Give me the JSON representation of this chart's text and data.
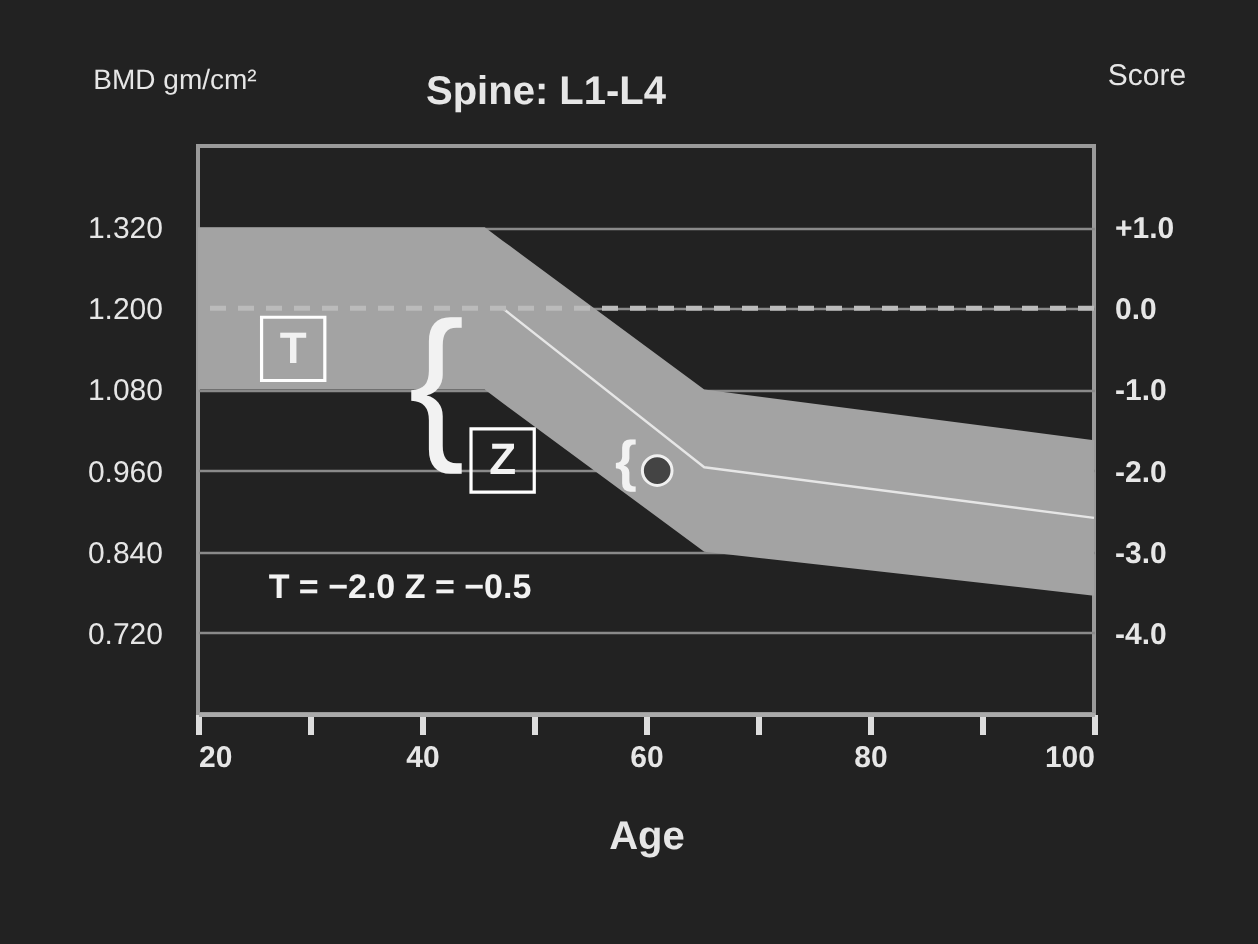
{
  "chart_data": {
    "type": "area",
    "title": "Spine: L1-L4",
    "xlabel": "Age",
    "ylabel": "BMD gm/cm²",
    "y2label": "Score",
    "xlim": [
      20,
      100
    ],
    "xticks": [
      20,
      {
        "value": 30,
        "label": null
      },
      40,
      {
        "value": 50,
        "label": null
      },
      60,
      {
        "value": 70,
        "label": null
      },
      80,
      {
        "value": 90,
        "label": null
      },
      100
    ],
    "ylim": [
      0.6,
      1.44
    ],
    "yticks": [
      {
        "value": 0.72,
        "label": "0.720"
      },
      {
        "value": 0.84,
        "label": "0.840"
      },
      {
        "value": 0.96,
        "label": "0.960"
      },
      {
        "value": 1.08,
        "label": "1.080"
      },
      {
        "value": 1.2,
        "label": "1.200"
      },
      {
        "value": 1.32,
        "label": "1.320"
      }
    ],
    "y2lim": [
      -5,
      2
    ],
    "y2ticks": [
      {
        "value": -4,
        "label": "-4.0"
      },
      {
        "value": -3,
        "label": "-3.0"
      },
      {
        "value": -2,
        "label": "-2.0"
      },
      {
        "value": -1,
        "label": "-1.0"
      },
      {
        "value": 0,
        "label": "0.0"
      },
      {
        "value": 1,
        "label": "+1.0"
      }
    ],
    "grid": "y",
    "series": [
      {
        "type": "line",
        "color": "#e6e6e6",
        "x": [
          20,
          45.6,
          47.2,
          65.2,
          100
        ],
        "values": [
          null,
          null,
          1.2,
          0.965,
          0.89
        ],
        "lower": [
          1.08,
          1.08,
          1.06,
          0.84,
          0.775
        ],
        "upper": [
          1.32,
          1.32,
          1.3,
          1.08,
          1.005
        ]
      },
      {
        "type": "scatter",
        "color": "#444444",
        "marker": "circle",
        "x": [
          61
        ],
        "values": [
          0.96
        ]
      }
    ],
    "ref_lines": [
      {
        "axis": "y",
        "value": 1.2,
        "color": "#bbbbbb",
        "line_style": "dashed"
      }
    ],
    "annotations": [
      {
        "text": "T",
        "x": 28.5,
        "y": 1.14
      },
      {
        "text": "Z",
        "x": 47.2,
        "y": 0.975
      },
      {
        "text": "{",
        "x": 41.3,
        "y": 1.08
      },
      "{",
      "T = −2.0   Z = −0.5"
    ]
  }
}
